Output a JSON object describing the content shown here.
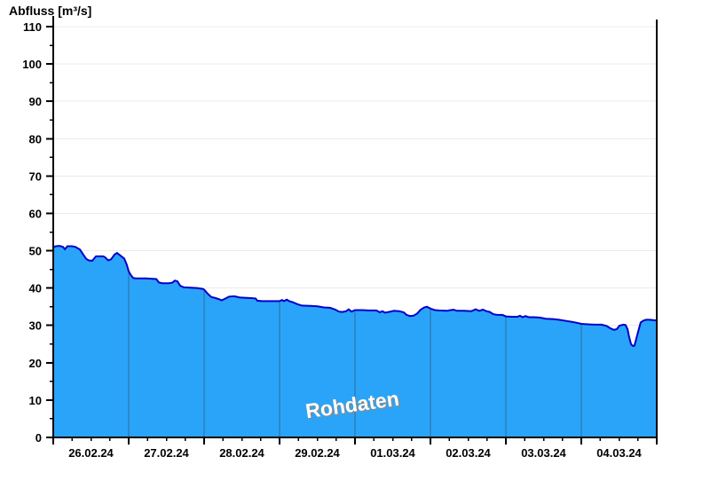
{
  "title": "Abfluss [m³/s]",
  "watermark": "Rohdaten",
  "colors": {
    "area_fill": "#2AA4F8",
    "curve_line": "#0000CC",
    "horizontal_grid": "#EBEBEB",
    "day_gridline_in_area": "#2E6B9E",
    "axis": "#000000",
    "background": "#FFFFFF",
    "watermark_text": "#FFFFFF",
    "watermark_shadow": "#8A8A8A",
    "label_text": "#000000"
  },
  "chart_data": {
    "type": "area",
    "title": "Abfluss [m³/s]",
    "ylabel": "Abfluss [m³/s]",
    "xlabel": "",
    "ylim": [
      0,
      110
    ],
    "y_major_step": 10,
    "y_minor_step": 5,
    "y_tick_labels": [
      "0",
      "10",
      "20",
      "30",
      "40",
      "50",
      "60",
      "70",
      "80",
      "90",
      "100",
      "110"
    ],
    "x_tick_labels": [
      "26.02.24",
      "27.02.24",
      "28.02.24",
      "29.02.24",
      "01.03.24",
      "02.03.24",
      "03.03.24",
      "04.03.24"
    ],
    "x_range_hours": [
      0,
      192
    ],
    "x_major_step_hours": 24,
    "x_minor_step_hours": 6,
    "grid": "horizontal major gridlines; vertical gridlines at day boundaries visible inside filled area",
    "legend_position": "none",
    "annotations": [
      "Rohdaten"
    ],
    "series": [
      {
        "name": "Rohdaten",
        "unit": "m³/s",
        "points_hours_value": [
          [
            0,
            50.9
          ],
          [
            0.8,
            51.2
          ],
          [
            2,
            51.3
          ],
          [
            3.1,
            51
          ],
          [
            3.7,
            50.4
          ],
          [
            4.5,
            51.2
          ],
          [
            6,
            51.2
          ],
          [
            7.1,
            51
          ],
          [
            8.5,
            50.3
          ],
          [
            9.6,
            48.9
          ],
          [
            10.5,
            47.8
          ],
          [
            11.3,
            47.4
          ],
          [
            12.4,
            47.3
          ],
          [
            13,
            47.9
          ],
          [
            13.6,
            48.5
          ],
          [
            15.8,
            48.5
          ],
          [
            16.4,
            48.3
          ],
          [
            17.5,
            47.4
          ],
          [
            18.4,
            47.7
          ],
          [
            19.5,
            49
          ],
          [
            20.3,
            49.4
          ],
          [
            21.2,
            48.8
          ],
          [
            22.6,
            47.9
          ],
          [
            23.4,
            46.2
          ],
          [
            24,
            44.5
          ],
          [
            24.6,
            43.6
          ],
          [
            25.4,
            42.7
          ],
          [
            26.3,
            42.6
          ],
          [
            27.7,
            42.6
          ],
          [
            29.6,
            42.6
          ],
          [
            31.1,
            42.5
          ],
          [
            32.8,
            42.4
          ],
          [
            33.6,
            41.5
          ],
          [
            34.7,
            41.3
          ],
          [
            36.7,
            41.3
          ],
          [
            37.8,
            41.4
          ],
          [
            38.7,
            42
          ],
          [
            39.5,
            41.8
          ],
          [
            40.4,
            40.6
          ],
          [
            41.5,
            40.2
          ],
          [
            43.8,
            40.1
          ],
          [
            45.7,
            40
          ],
          [
            47.4,
            39.8
          ],
          [
            48,
            39.6
          ],
          [
            49.1,
            38.5
          ],
          [
            50.3,
            37.6
          ],
          [
            51.7,
            37.3
          ],
          [
            53.1,
            36.9
          ],
          [
            53.6,
            36.7
          ],
          [
            54.8,
            37.2
          ],
          [
            55.9,
            37.7
          ],
          [
            57.6,
            37.8
          ],
          [
            59.3,
            37.5
          ],
          [
            61,
            37.4
          ],
          [
            63,
            37.3
          ],
          [
            64.4,
            37.2
          ],
          [
            64.9,
            36.6
          ],
          [
            66.4,
            36.5
          ],
          [
            68.6,
            36.5
          ],
          [
            70.6,
            36.5
          ],
          [
            72,
            36.5
          ],
          [
            72.8,
            36.8
          ],
          [
            73.4,
            36.5
          ],
          [
            74.3,
            36.9
          ],
          [
            75.1,
            36.5
          ],
          [
            76.2,
            36.2
          ],
          [
            77.6,
            35.7
          ],
          [
            79.1,
            35.3
          ],
          [
            81.9,
            35.2
          ],
          [
            84.1,
            35.1
          ],
          [
            86.1,
            34.8
          ],
          [
            88.1,
            34.7
          ],
          [
            89.8,
            34.2
          ],
          [
            90.9,
            33.7
          ],
          [
            92,
            33.6
          ],
          [
            93.2,
            33.8
          ],
          [
            94,
            34.3
          ],
          [
            94.9,
            33.7
          ],
          [
            96,
            34.1
          ],
          [
            98.3,
            34.1
          ],
          [
            100.5,
            34
          ],
          [
            102.8,
            34
          ],
          [
            103.9,
            33.5
          ],
          [
            104.7,
            33.8
          ],
          [
            105.6,
            33.4
          ],
          [
            106.7,
            33.6
          ],
          [
            108.4,
            33.9
          ],
          [
            110.1,
            33.8
          ],
          [
            111.5,
            33.5
          ],
          [
            112.4,
            32.8
          ],
          [
            113.5,
            32.5
          ],
          [
            114.6,
            32.6
          ],
          [
            115.8,
            33.2
          ],
          [
            116.9,
            34.2
          ],
          [
            118,
            34.8
          ],
          [
            118.9,
            35
          ],
          [
            120,
            34.5
          ],
          [
            121.4,
            34.1
          ],
          [
            122.8,
            34
          ],
          [
            125.1,
            33.9
          ],
          [
            127.3,
            34.2
          ],
          [
            128.5,
            33.9
          ],
          [
            130.7,
            33.9
          ],
          [
            133,
            33.8
          ],
          [
            134.4,
            34.3
          ],
          [
            135.5,
            33.9
          ],
          [
            136.7,
            34.2
          ],
          [
            137.8,
            33.8
          ],
          [
            138.9,
            33.6
          ],
          [
            140,
            33
          ],
          [
            141.2,
            32.8
          ],
          [
            142.9,
            32.8
          ],
          [
            144,
            32.4
          ],
          [
            146,
            32.3
          ],
          [
            147.6,
            32.3
          ],
          [
            148.5,
            32.6
          ],
          [
            149.3,
            32.2
          ],
          [
            150.2,
            32.5
          ],
          [
            151.3,
            32.2
          ],
          [
            153,
            32.2
          ],
          [
            154.7,
            32.1
          ],
          [
            156.7,
            31.8
          ],
          [
            159,
            31.7
          ],
          [
            160.9,
            31.5
          ],
          [
            163.2,
            31.2
          ],
          [
            165.2,
            30.9
          ],
          [
            166.6,
            30.7
          ],
          [
            168,
            30.4
          ],
          [
            170,
            30.3
          ],
          [
            172.2,
            30.2
          ],
          [
            174.5,
            30.2
          ],
          [
            176.2,
            29.8
          ],
          [
            177.3,
            29.2
          ],
          [
            178.4,
            28.8
          ],
          [
            179.3,
            29
          ],
          [
            180.1,
            29.9
          ],
          [
            181.3,
            30.2
          ],
          [
            182.1,
            30.1
          ],
          [
            182.7,
            29
          ],
          [
            183.2,
            27
          ],
          [
            183.8,
            25
          ],
          [
            184.4,
            24.5
          ],
          [
            184.9,
            24.6
          ],
          [
            185.5,
            26.5
          ],
          [
            186.1,
            28.4
          ],
          [
            186.9,
            30.8
          ],
          [
            187.8,
            31.3
          ],
          [
            188.6,
            31.5
          ],
          [
            189.7,
            31.5
          ],
          [
            190.8,
            31.4
          ],
          [
            192,
            31.3
          ]
        ]
      }
    ]
  }
}
